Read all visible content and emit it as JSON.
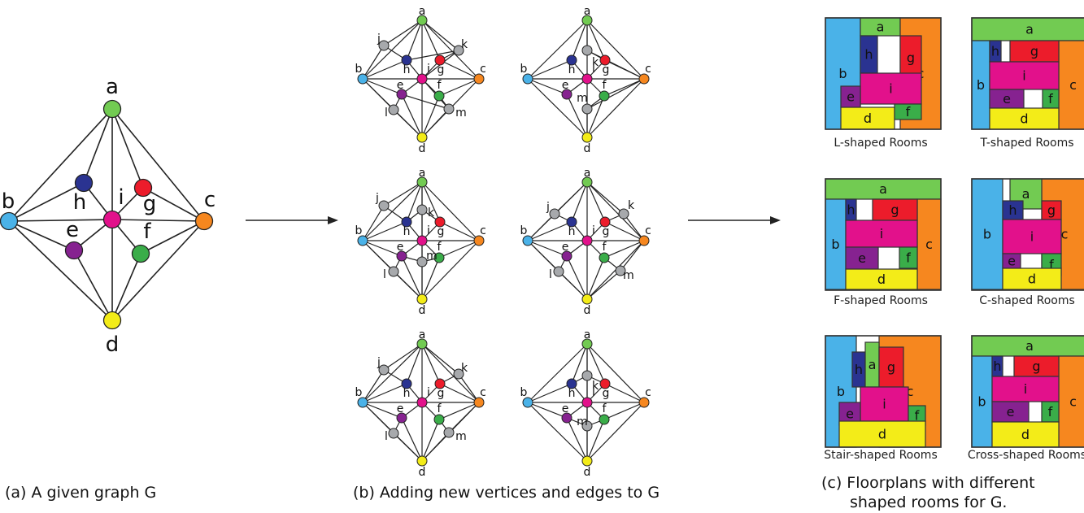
{
  "colors": {
    "a": "#72cb52",
    "b": "#4ab2e8",
    "c": "#f6871f",
    "d": "#f3ec18",
    "e": "#862290",
    "f": "#3aad49",
    "g": "#ec1c2b",
    "h": "#2a3391",
    "i": "#e2118b",
    "extra": "#a7a9ac"
  },
  "captions": {
    "a": "(a) A given graph G",
    "b": "(b) Adding new vertices and edges to G",
    "c_line1": "(c) Floorplans with different",
    "c_line2": "shaped rooms for G."
  },
  "main_graph": {
    "vertices": [
      "a",
      "b",
      "c",
      "d",
      "e",
      "f",
      "g",
      "h",
      "i"
    ]
  },
  "variants": [
    {
      "new_vertices": [
        "j",
        "k",
        "l",
        "m"
      ]
    },
    {
      "new_vertices": [
        "k",
        "m"
      ]
    },
    {
      "new_vertices": [
        "j",
        "k",
        "l",
        "m"
      ]
    },
    {
      "new_vertices": [
        "j",
        "k",
        "l",
        "m"
      ]
    },
    {
      "new_vertices": [
        "j",
        "k",
        "l",
        "m"
      ]
    },
    {
      "new_vertices": [
        "k",
        "m"
      ]
    }
  ],
  "floorplans": [
    {
      "title": "L-shaped Rooms"
    },
    {
      "title": "T-shaped Rooms"
    },
    {
      "title": "F-shaped Rooms"
    },
    {
      "title": "C-shaped Rooms"
    },
    {
      "title": "Stair-shaped Rooms"
    },
    {
      "title": "Cross-shaped Rooms"
    }
  ]
}
